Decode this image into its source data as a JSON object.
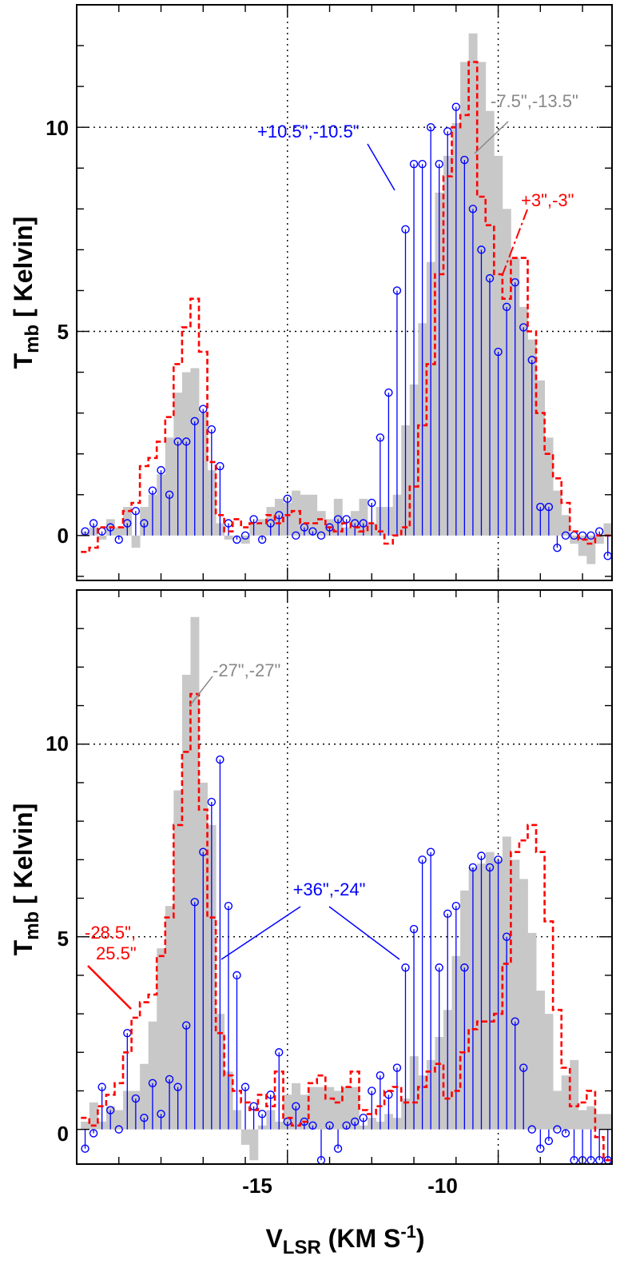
{
  "chart_data": [
    {
      "type": "line",
      "panel": "top",
      "ylabel": "T",
      "ylabel_sub": "mb",
      "ylabel_rest": " [ Kelvin]",
      "xlim": [
        -20,
        -7.3
      ],
      "ylim": [
        -1.1,
        13.0
      ],
      "xticks": [
        -15,
        -10
      ],
      "yticks": [
        {
          "v": 0,
          "label": "0"
        },
        {
          "v": 5,
          "label": "5"
        },
        {
          "v": 10,
          "label": "10"
        }
      ],
      "grid": "dotted at x=-15, -10 and y=5, 10",
      "series": [
        {
          "name": "-7.5\",-13.5\"",
          "style": "gray-filled-histogram",
          "color": "#c8c8c8",
          "x": [
            -19.8,
            -19.6,
            -19.4,
            -19.2,
            -19.0,
            -18.8,
            -18.6,
            -18.4,
            -18.2,
            -18.0,
            -17.8,
            -17.6,
            -17.4,
            -17.2,
            -17.0,
            -16.8,
            -16.6,
            -16.4,
            -16.2,
            -16.0,
            -15.8,
            -15.6,
            -15.4,
            -15.2,
            -15.0,
            -14.8,
            -14.6,
            -14.4,
            -14.2,
            -14.0,
            -13.8,
            -13.6,
            -13.4,
            -13.2,
            -13.0,
            -12.8,
            -12.6,
            -12.4,
            -12.2,
            -12.0,
            -11.8,
            -11.6,
            -11.4,
            -11.2,
            -11.0,
            -10.8,
            -10.6,
            -10.4,
            -10.2,
            -10.0,
            -9.8,
            -9.6,
            -9.4,
            -9.2,
            -9.0,
            -8.8,
            -8.6,
            -8.4,
            -8.2,
            -8.0,
            -7.8,
            -7.6,
            -7.4
          ],
          "values": [
            0.1,
            0.2,
            -0.1,
            0.4,
            0.2,
            0.7,
            -0.3,
            0.7,
            1.0,
            1.5,
            2.4,
            3.5,
            4.0,
            4.1,
            3.0,
            1.6,
            0.3,
            -0.1,
            0.0,
            -0.2,
            0.3,
            0.4,
            0.7,
            0.9,
            0.8,
            1.1,
            1.0,
            1.0,
            0.6,
            0.4,
            0.9,
            0.2,
            0.6,
            0.9,
            0.3,
            0.7,
            0.7,
            1.0,
            2.7,
            3.7,
            5.2,
            6.7,
            8.4,
            9.3,
            10.1,
            11.6,
            12.3,
            11.6,
            10.4,
            9.3,
            8.0,
            6.8,
            5.6,
            4.8,
            3.8,
            2.4,
            1.1,
            0.5,
            -0.2,
            -0.5,
            -0.7,
            -0.2,
            0.3
          ]
        },
        {
          "name": "+3\",-3\"",
          "style": "red-dashed-histogram",
          "color": "#ff0000",
          "x": [
            -19.8,
            -19.6,
            -19.4,
            -19.2,
            -19.0,
            -18.8,
            -18.6,
            -18.4,
            -18.2,
            -18.0,
            -17.8,
            -17.6,
            -17.4,
            -17.2,
            -17.0,
            -16.8,
            -16.6,
            -16.4,
            -16.2,
            -16.0,
            -15.8,
            -15.6,
            -15.4,
            -15.2,
            -15.0,
            -14.8,
            -14.6,
            -14.4,
            -14.2,
            -14.0,
            -13.8,
            -13.6,
            -13.4,
            -13.2,
            -13.0,
            -12.8,
            -12.6,
            -12.4,
            -12.2,
            -12.0,
            -11.8,
            -11.6,
            -11.4,
            -11.2,
            -11.0,
            -10.8,
            -10.6,
            -10.4,
            -10.2,
            -10.0,
            -9.8,
            -9.6,
            -9.4,
            -9.2,
            -9.0,
            -8.8,
            -8.6,
            -8.4,
            -8.2,
            -8.0,
            -7.8,
            -7.6,
            -7.4
          ],
          "values": [
            -0.4,
            -0.3,
            0.2,
            0.2,
            0.2,
            0.6,
            0.8,
            1.7,
            1.9,
            2.3,
            2.9,
            4.2,
            5.1,
            5.8,
            4.5,
            1.8,
            0.5,
            0.1,
            0.4,
            0.2,
            0.3,
            0.3,
            0.5,
            0.3,
            0.5,
            0.6,
            0.3,
            0.3,
            0.4,
            0.2,
            0.1,
            0.3,
            0.2,
            0.1,
            0.3,
            0.1,
            -0.2,
            0.0,
            0.2,
            1.2,
            2.7,
            4.2,
            6.4,
            8.8,
            10.0,
            10.3,
            11.6,
            8.3,
            7.6,
            6.4,
            5.8,
            6.8,
            6.8,
            5.0,
            3.0,
            2.0,
            1.4,
            0.8,
            0.1,
            -0.1,
            -0.2,
            0.0,
            0.0
          ]
        },
        {
          "name": "+10.5\",-10.5\"",
          "style": "blue-stems-circles",
          "color": "#0000ff",
          "x": [
            -19.8,
            -19.6,
            -19.4,
            -19.2,
            -19.0,
            -18.8,
            -18.6,
            -18.4,
            -18.2,
            -18.0,
            -17.8,
            -17.6,
            -17.4,
            -17.2,
            -17.0,
            -16.8,
            -16.6,
            -16.4,
            -16.2,
            -16.0,
            -15.8,
            -15.6,
            -15.4,
            -15.2,
            -15.0,
            -14.8,
            -14.6,
            -14.4,
            -14.2,
            -14.0,
            -13.8,
            -13.6,
            -13.4,
            -13.2,
            -13.0,
            -12.8,
            -12.6,
            -12.4,
            -12.2,
            -12.0,
            -11.8,
            -11.6,
            -11.4,
            -11.2,
            -11.0,
            -10.8,
            -10.6,
            -10.4,
            -10.2,
            -10.0,
            -9.8,
            -9.6,
            -9.4,
            -9.2,
            -9.0,
            -8.8,
            -8.6,
            -8.4,
            -8.2,
            -8.0,
            -7.8,
            -7.6,
            -7.4
          ],
          "values": [
            0.1,
            0.3,
            0.1,
            0.2,
            -0.1,
            0.3,
            0.6,
            0.3,
            1.1,
            1.6,
            1.0,
            2.3,
            2.3,
            2.8,
            3.1,
            2.6,
            1.7,
            0.3,
            -0.1,
            0.0,
            0.4,
            -0.1,
            0.3,
            0.5,
            0.9,
            0.0,
            0.2,
            0.1,
            0.0,
            0.2,
            0.4,
            0.4,
            0.3,
            0.3,
            0.8,
            2.4,
            3.5,
            6.0,
            7.5,
            9.1,
            9.1,
            10.0,
            9.1,
            9.9,
            10.5,
            9.2,
            8.0,
            7.0,
            6.3,
            4.5,
            5.6,
            6.2,
            5.1,
            4.3,
            0.7,
            0.7,
            -0.3,
            0.0,
            0.0,
            0.0,
            0.0,
            0.1,
            -0.5
          ]
        }
      ],
      "annotations": [
        {
          "text": "+10.5\",-10.5\"",
          "color": "#0000ff"
        },
        {
          "text": "-7.5\",-13.5\"",
          "color": "#888888"
        },
        {
          "text": "+3\",-3\"",
          "color": "#ff0000"
        }
      ]
    },
    {
      "type": "line",
      "panel": "bottom",
      "ylabel": "T",
      "ylabel_sub": "mb",
      "ylabel_rest": " [ Kelvin]",
      "xlabel": "V",
      "xlabel_sub": "LSR",
      "xlabel_rest": " (KM S",
      "xlabel_sup": "-1",
      "xlabel_end": ")",
      "xlim": [
        -20,
        -7.3
      ],
      "ylim": [
        -0.9,
        14.0
      ],
      "xticks": [
        {
          "v": -15,
          "label": "-15"
        },
        {
          "v": -10,
          "label": "-10"
        }
      ],
      "yticks": [
        {
          "v": 0,
          "label": "0"
        },
        {
          "v": 5,
          "label": "5"
        },
        {
          "v": 10,
          "label": "10"
        }
      ],
      "grid": "dotted at x=-15, -10 and y=5, 10",
      "series": [
        {
          "name": "-27\",-27\"",
          "style": "gray-filled-histogram",
          "color": "#c8c8c8",
          "x": [
            -19.8,
            -19.6,
            -19.4,
            -19.2,
            -19.0,
            -18.8,
            -18.6,
            -18.4,
            -18.2,
            -18.0,
            -17.8,
            -17.6,
            -17.4,
            -17.2,
            -17.0,
            -16.8,
            -16.6,
            -16.4,
            -16.2,
            -16.0,
            -15.8,
            -15.6,
            -15.4,
            -15.2,
            -15.0,
            -14.8,
            -14.6,
            -14.4,
            -14.2,
            -14.0,
            -13.8,
            -13.6,
            -13.4,
            -13.2,
            -13.0,
            -12.8,
            -12.6,
            -12.4,
            -12.2,
            -12.0,
            -11.8,
            -11.6,
            -11.4,
            -11.2,
            -11.0,
            -10.8,
            -10.6,
            -10.4,
            -10.2,
            -10.0,
            -9.8,
            -9.6,
            -9.4,
            -9.2,
            -9.0,
            -8.8,
            -8.6,
            -8.4,
            -8.2,
            -8.0,
            -7.8,
            -7.6,
            -7.4
          ],
          "values": [
            0.2,
            0.7,
            0.2,
            0.6,
            0.5,
            1.0,
            1.0,
            1.7,
            2.8,
            4.7,
            5.8,
            8.8,
            11.8,
            13.3,
            9.0,
            7.9,
            3.0,
            1.5,
            0.5,
            -0.4,
            -0.8,
            0.1,
            0.5,
            0.2,
            0.9,
            1.2,
            0.9,
            1.1,
            1.1,
            1.1,
            1.0,
            1.1,
            1.1,
            0.1,
            0.3,
            0.2,
            0.4,
            0.3,
            0.8,
            1.9,
            1.4,
            1.8,
            2.4,
            3.1,
            4.5,
            6.2,
            6.8,
            6.9,
            7.2,
            7.0,
            7.6,
            7.0,
            6.5,
            5.1,
            3.6,
            3.0,
            1.0,
            1.4,
            1.8,
            0.5,
            0.6,
            0.4,
            0.4
          ]
        },
        {
          "name": "-28.5\",25.5\"",
          "style": "red-dashed-histogram",
          "color": "#ff0000",
          "x": [
            -19.8,
            -19.6,
            -19.4,
            -19.2,
            -19.0,
            -18.8,
            -18.6,
            -18.4,
            -18.2,
            -18.0,
            -17.8,
            -17.6,
            -17.4,
            -17.2,
            -17.0,
            -16.8,
            -16.6,
            -16.4,
            -16.2,
            -16.0,
            -15.8,
            -15.6,
            -15.4,
            -15.2,
            -15.0,
            -14.8,
            -14.6,
            -14.4,
            -14.2,
            -14.0,
            -13.8,
            -13.6,
            -13.4,
            -13.2,
            -13.0,
            -12.8,
            -12.6,
            -12.4,
            -12.2,
            -12.0,
            -11.8,
            -11.6,
            -11.4,
            -11.2,
            -11.0,
            -10.8,
            -10.6,
            -10.4,
            -10.2,
            -10.0,
            -9.8,
            -9.6,
            -9.4,
            -9.2,
            -9.0,
            -8.8,
            -8.6,
            -8.4,
            -8.2,
            -8.0,
            -7.8,
            -7.6,
            -7.4
          ],
          "values": [
            0.3,
            0.1,
            0.6,
            0.9,
            1.2,
            2.0,
            2.9,
            3.3,
            3.5,
            4.5,
            5.5,
            7.9,
            9.8,
            11.3,
            8.3,
            5.5,
            2.5,
            1.4,
            1.0,
            0.7,
            0.5,
            0.9,
            0.6,
            1.5,
            0.3,
            0.1,
            0.2,
            1.2,
            1.4,
            0.8,
            0.7,
            1.1,
            1.5,
            0.5,
            0.4,
            0.6,
            1.0,
            1.1,
            0.7,
            0.7,
            1.1,
            1.5,
            1.7,
            0.8,
            1.0,
            2.0,
            2.6,
            2.8,
            2.8,
            3.0,
            4.3,
            7.2,
            7.5,
            7.9,
            7.2,
            5.4,
            3.1,
            1.6,
            0.6,
            0.7,
            1.0,
            -0.2,
            -0.8
          ]
        },
        {
          "name": "+36\",-24\"",
          "style": "blue-stems-circles",
          "color": "#0000ff",
          "x": [
            -19.8,
            -19.6,
            -19.4,
            -19.2,
            -19.0,
            -18.8,
            -18.6,
            -18.4,
            -18.2,
            -18.0,
            -17.8,
            -17.6,
            -17.4,
            -17.2,
            -17.0,
            -16.8,
            -16.6,
            -16.4,
            -16.2,
            -16.0,
            -15.8,
            -15.6,
            -15.4,
            -15.2,
            -15.0,
            -14.8,
            -14.6,
            -14.4,
            -14.2,
            -14.0,
            -13.8,
            -13.6,
            -13.4,
            -13.2,
            -13.0,
            -12.8,
            -12.6,
            -12.4,
            -12.2,
            -12.0,
            -11.8,
            -11.6,
            -11.4,
            -11.2,
            -11.0,
            -10.8,
            -10.6,
            -10.4,
            -10.2,
            -10.0,
            -9.8,
            -9.6,
            -9.4,
            -9.2,
            -9.0,
            -8.8,
            -8.6,
            -8.4,
            -8.2,
            -8.0,
            -7.8,
            -7.6,
            -7.4
          ],
          "values": [
            -0.5,
            -0.1,
            1.1,
            0.5,
            0.0,
            2.5,
            0.8,
            0.3,
            1.2,
            0.4,
            1.3,
            1.1,
            2.7,
            5.9,
            7.2,
            8.5,
            9.6,
            5.8,
            4.0,
            1.1,
            0.6,
            0.4,
            0.9,
            2.0,
            0.2,
            0.6,
            0.2,
            0.1,
            -0.8,
            0.1,
            -0.5,
            0.1,
            0.2,
            0.3,
            1.0,
            1.4,
            0.9,
            1.6,
            4.2,
            5.2,
            7.0,
            7.2,
            4.2,
            5.6,
            5.8,
            4.2,
            6.8,
            7.1,
            6.8,
            7.0,
            5.0,
            2.8,
            1.6,
            0.0,
            -0.5,
            -0.3,
            0.0,
            -0.1,
            -0.8,
            -0.8,
            -0.8,
            -0.8,
            -0.8
          ]
        }
      ],
      "annotations": [
        {
          "text": "-27\",-27\"",
          "color": "#888888"
        },
        {
          "text": "+36\",-24\"",
          "color": "#0000ff"
        },
        {
          "text_line1": "-28.5\",",
          "text_line2": "25.5\"",
          "color": "#ff0000"
        }
      ]
    }
  ]
}
